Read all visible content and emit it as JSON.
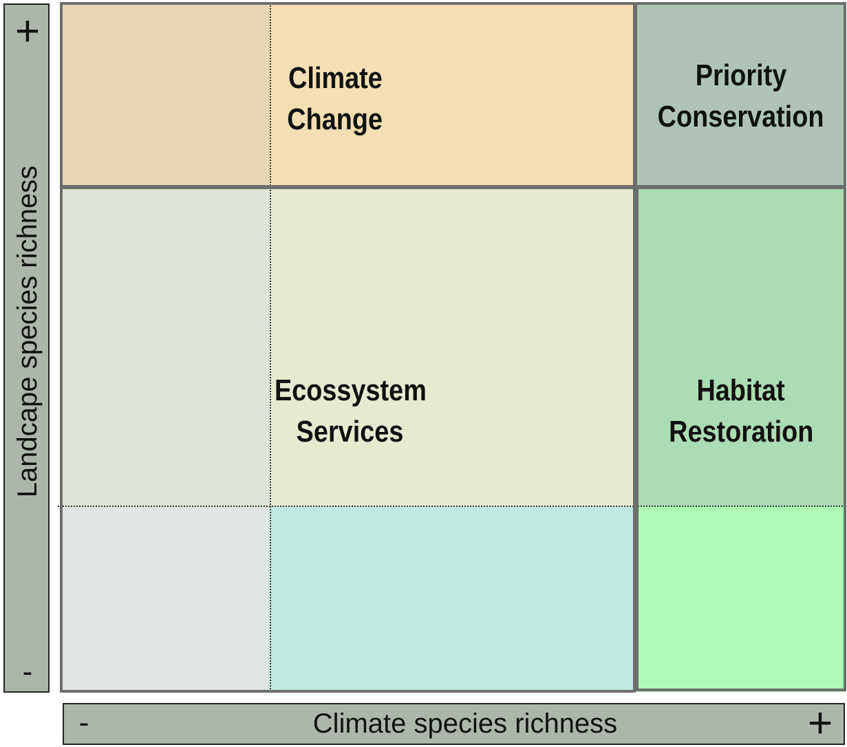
{
  "y_axis": {
    "title": "Landcape species richness",
    "plus": "+",
    "minus": "-"
  },
  "x_axis": {
    "title": "Climate species richness",
    "plus": "+",
    "minus": "-"
  },
  "regions": {
    "climate_change": {
      "line1": "Climate",
      "line2": "Change"
    },
    "priority_conservation": {
      "line1": "Priority",
      "line2": "Conservation"
    },
    "ecosystem_services": {
      "line1": "Ecossystem",
      "line2": "Services"
    },
    "habitat_restoration": {
      "line1": "Habitat",
      "line2": "Restoration"
    }
  },
  "colors": {
    "axis_bar": "#adb6ab",
    "climate_change_left": "#e8d6b4",
    "climate_change_right": "#f4deb3",
    "priority_conservation": "#afc4b6",
    "ecosystem_left": "#dee5d6",
    "ecosystem_right": "#e6ebd0",
    "habitat_upper": "#abdcb3",
    "bottom_left": "#dfe6e2",
    "bottom_middle": "#bee8e0",
    "bottom_right": "#aef9b4",
    "border": "#6e6e6e"
  }
}
